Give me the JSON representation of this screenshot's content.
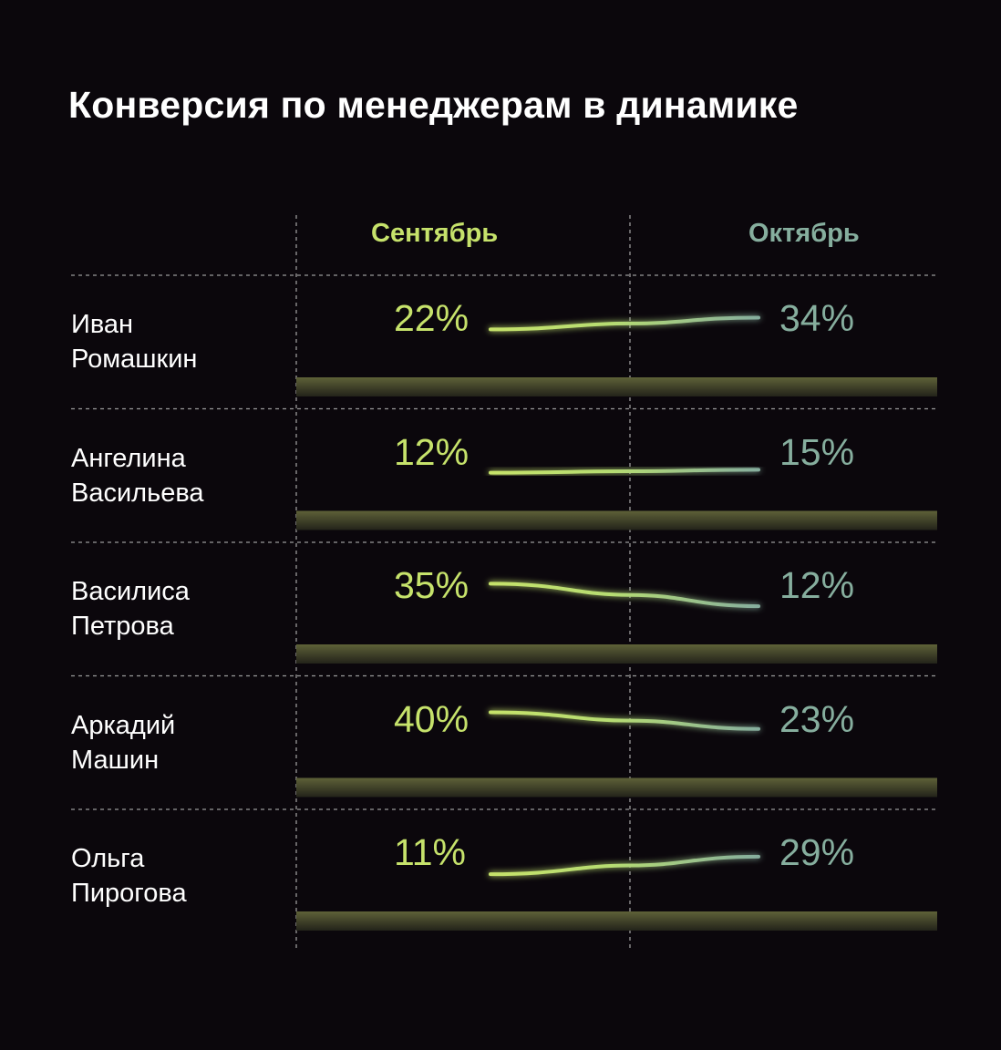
{
  "chart_data": {
    "type": "line",
    "title": "Конверсия по менеджерам в динамике",
    "categories": [
      "Сентябрь",
      "Октябрь"
    ],
    "rows": [
      {
        "name_line1": "Иван",
        "name_line2": "Ромашкин",
        "sep": 22,
        "oct": 34,
        "sep_label": "22%",
        "oct_label": "34%"
      },
      {
        "name_line1": "Ангелина",
        "name_line2": "Васильева",
        "sep": 12,
        "oct": 15,
        "sep_label": "12%",
        "oct_label": "15%"
      },
      {
        "name_line1": "Василиса",
        "name_line2": "Петрова",
        "sep": 35,
        "oct": 12,
        "sep_label": "35%",
        "oct_label": "12%"
      },
      {
        "name_line1": "Аркадий",
        "name_line2": "Машин",
        "sep": 40,
        "oct": 23,
        "sep_label": "40%",
        "oct_label": "23%"
      },
      {
        "name_line1": "Ольга",
        "name_line2": "Пирогова",
        "sep": 11,
        "oct": 29,
        "sep_label": "11%",
        "oct_label": "29%"
      }
    ],
    "grid": true
  },
  "colors": {
    "background": "#0b070c",
    "september": "#c6e26b",
    "october": "#86ae9e",
    "grid": "#9a9a9a",
    "band": "#5e6138"
  }
}
